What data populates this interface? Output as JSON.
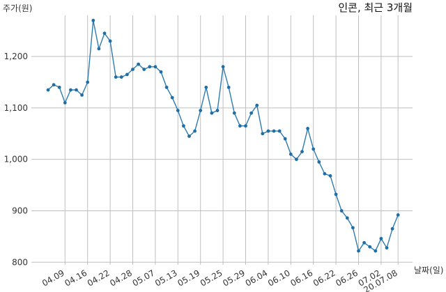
{
  "chart_data": {
    "type": "line",
    "title": "인콘, 최근 3개월",
    "ylabel": "주가(원)",
    "xlabel": "날짜(일)",
    "ylim": [
      795,
      1280
    ],
    "grid": true,
    "y_ticks": [
      800,
      900,
      1000,
      1100,
      1200
    ],
    "y_tick_labels": [
      "800",
      "900",
      "1,000",
      "1,100",
      "1,200"
    ],
    "x_tick_labels": [
      "04.09",
      "04.16",
      "04.22",
      "04.28",
      "05.07",
      "05.13",
      "05.19",
      "05.25",
      "05.29",
      "06.04",
      "06.10",
      "06.16",
      "06.22",
      "06.26",
      "07.02",
      "20.07.08"
    ],
    "x_tick_indices": [
      3,
      7,
      11,
      15,
      19,
      23,
      27,
      31,
      35,
      39,
      43,
      47,
      51,
      55,
      59,
      62
    ],
    "values": [
      1135,
      1145,
      1140,
      1110,
      1135,
      1135,
      1125,
      1150,
      1270,
      1215,
      1245,
      1230,
      1160,
      1160,
      1165,
      1175,
      1185,
      1175,
      1180,
      1180,
      1170,
      1140,
      1120,
      1095,
      1065,
      1045,
      1055,
      1095,
      1140,
      1090,
      1095,
      1180,
      1140,
      1090,
      1065,
      1065,
      1090,
      1105,
      1050,
      1055,
      1055,
      1055,
      1040,
      1010,
      1000,
      1015,
      1060,
      1020,
      995,
      972,
      968,
      932,
      900,
      886,
      867,
      822,
      838,
      830,
      822,
      846,
      828,
      865,
      892
    ]
  }
}
